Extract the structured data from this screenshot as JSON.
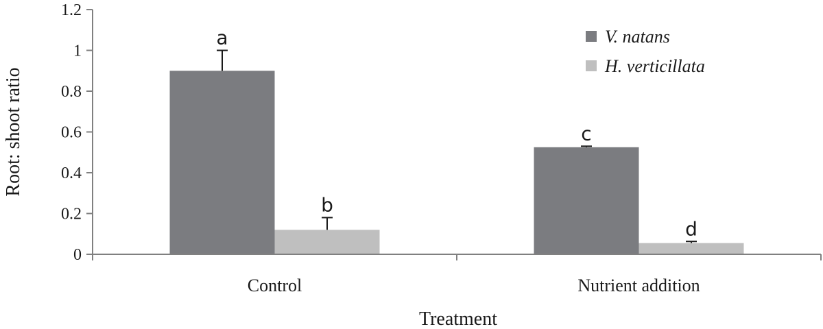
{
  "chart_data": {
    "type": "bar",
    "title": "",
    "xlabel": "Treatment",
    "ylabel": "Root: shoot ratio",
    "ylim": [
      0,
      1.2
    ],
    "yticks": [
      "0",
      "0.2",
      "0.4",
      "0.6",
      "0.8",
      "1",
      "1.2"
    ],
    "categories": [
      "Control",
      "Nutrient addition"
    ],
    "series": [
      {
        "name": "V. natans",
        "color": "#7b7c80",
        "values": [
          0.9,
          0.525
        ],
        "errors": [
          0.1,
          0.005
        ],
        "labels": [
          "a",
          "c"
        ]
      },
      {
        "name": "H. verticillata",
        "color": "#bfbfbf",
        "values": [
          0.12,
          0.055
        ],
        "errors": [
          0.06,
          0.008
        ],
        "labels": [
          "b",
          "d"
        ]
      }
    ],
    "legend_position": "top-right",
    "grid": false
  }
}
